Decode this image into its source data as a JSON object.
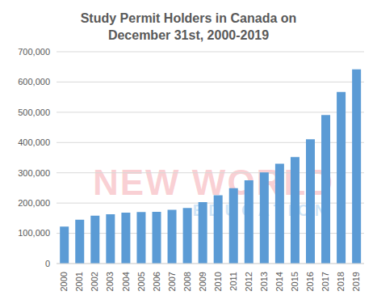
{
  "chart_data": {
    "type": "bar",
    "title": "Study Permit Holders in Canada on December 31st, 2000-2019",
    "categories": [
      "2000",
      "2001",
      "2002",
      "2003",
      "2004",
      "2005",
      "2006",
      "2007",
      "2008",
      "2009",
      "2010",
      "2011",
      "2012",
      "2013",
      "2014",
      "2015",
      "2016",
      "2017",
      "2018",
      "2019"
    ],
    "values": [
      122000,
      145000,
      158000,
      163000,
      168000,
      170000,
      171000,
      178000,
      184000,
      203000,
      226000,
      249000,
      275000,
      301000,
      330000,
      352000,
      411000,
      491000,
      567000,
      642000
    ],
    "color": "#5b9bd5",
    "ylim": [
      0,
      700000
    ],
    "yticks": [
      0,
      {
        "value": 100000,
        "label": "100,000"
      },
      {
        "value": 200000,
        "label": "200,000"
      },
      {
        "value": 300000,
        "label": "300,000"
      },
      {
        "value": 400000,
        "label": "400,000"
      },
      {
        "value": 500000,
        "label": "500,000"
      },
      {
        "value": 600000,
        "label": "600,000"
      },
      {
        "value": 700000,
        "label": "700,000"
      }
    ],
    "grid": true,
    "annotations": [
      "NEW WORLD",
      "EDUCATION"
    ]
  }
}
